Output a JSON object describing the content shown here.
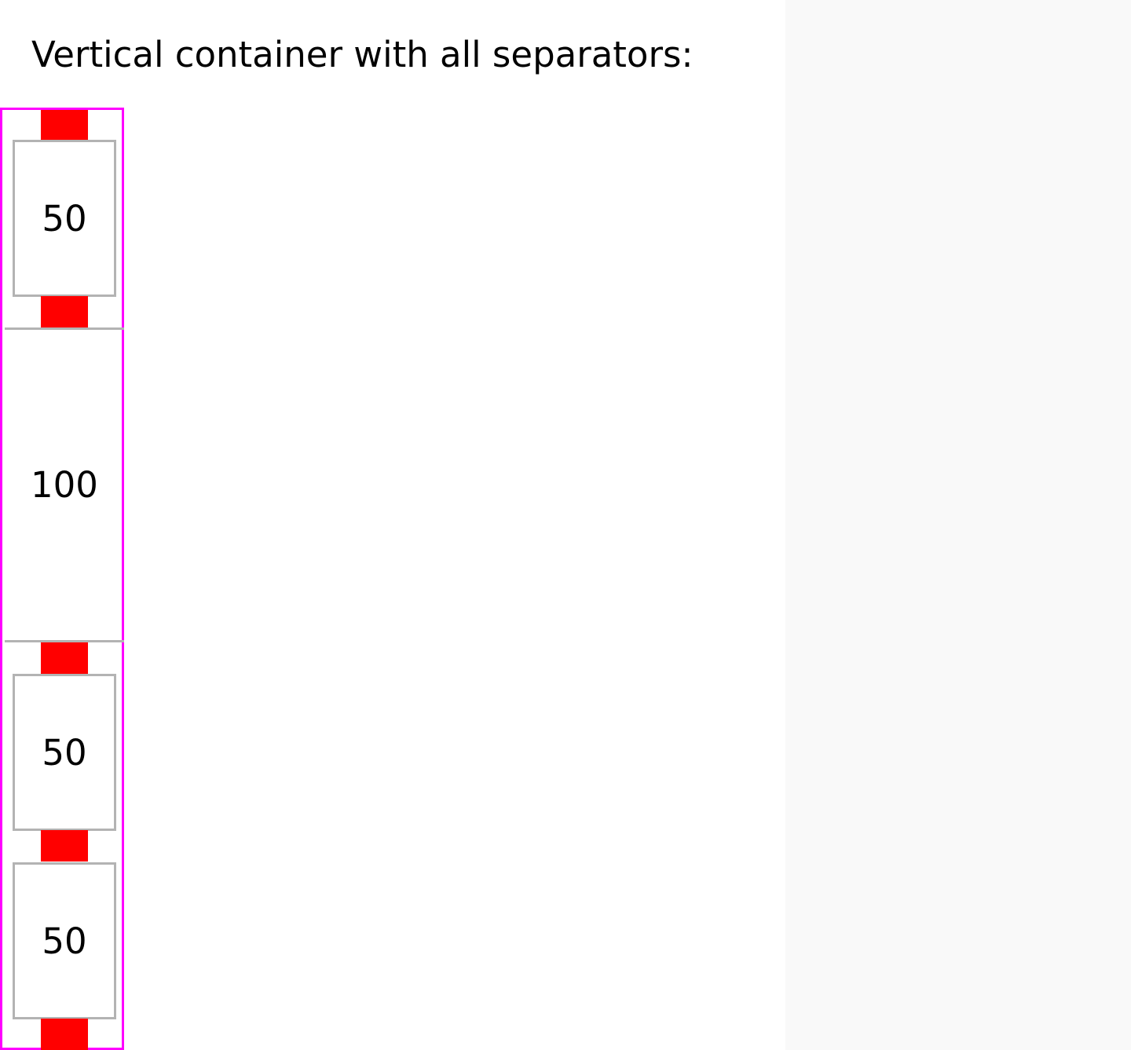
{
  "page": {
    "title": "Vertical container with all separators:"
  },
  "container": {
    "items": [
      {
        "label": "50"
      },
      {
        "label": "100"
      },
      {
        "label": "50"
      },
      {
        "label": "50"
      }
    ]
  },
  "colors": {
    "container_border": "#ff00ff",
    "separator": "#ff0000",
    "item_border": "#b3b3b3",
    "side_panel": "#f9f9f9"
  }
}
